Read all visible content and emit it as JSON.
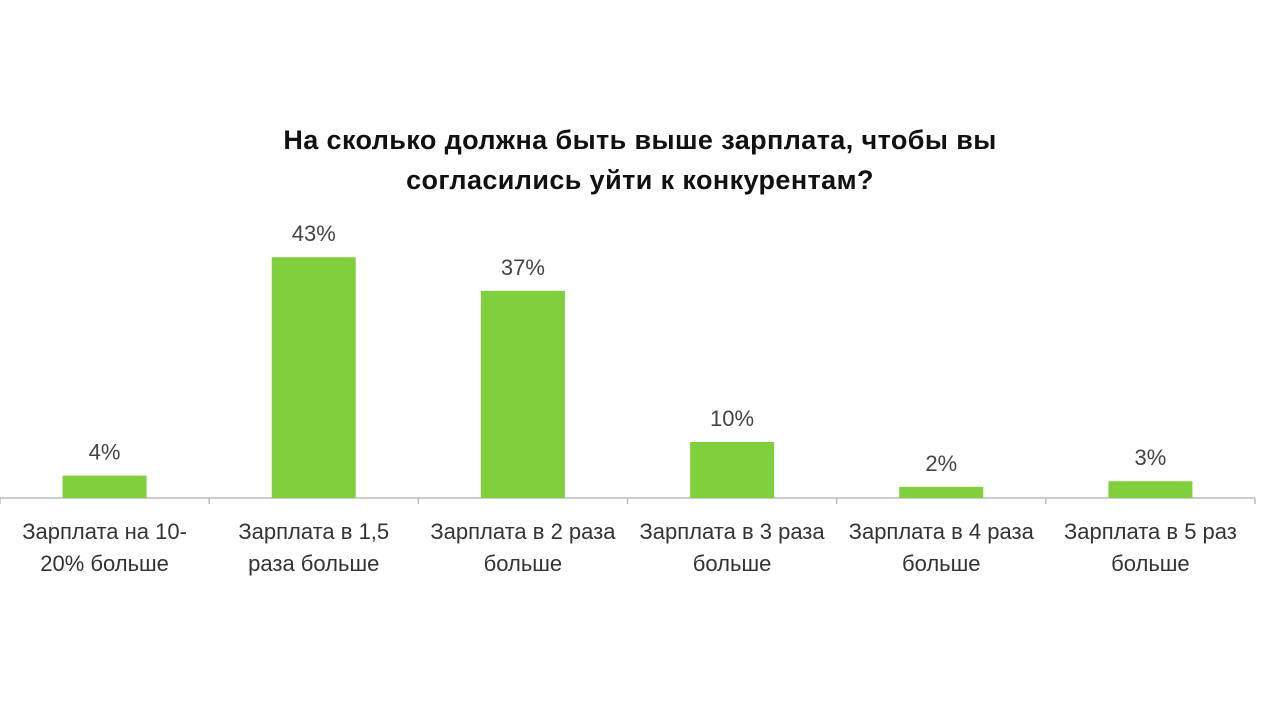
{
  "chart_data": {
    "type": "bar",
    "title": "На сколько должна быть выше зарплата, чтобы вы согласились уйти к конкурентам?",
    "categories": [
      "Зарплата на 10-20% больше",
      "Зарплата в 1,5 раза больше",
      "Зарплата в 2 раза больше",
      "Зарплата в 3 раза больше",
      "Зарплата в 4 раза больше",
      "Зарплата в 5 раз больше"
    ],
    "values": [
      4,
      43,
      37,
      10,
      2,
      3
    ],
    "value_labels": [
      "4%",
      "43%",
      "37%",
      "10%",
      "2%",
      "3%"
    ],
    "color": "#80cf3c"
  }
}
